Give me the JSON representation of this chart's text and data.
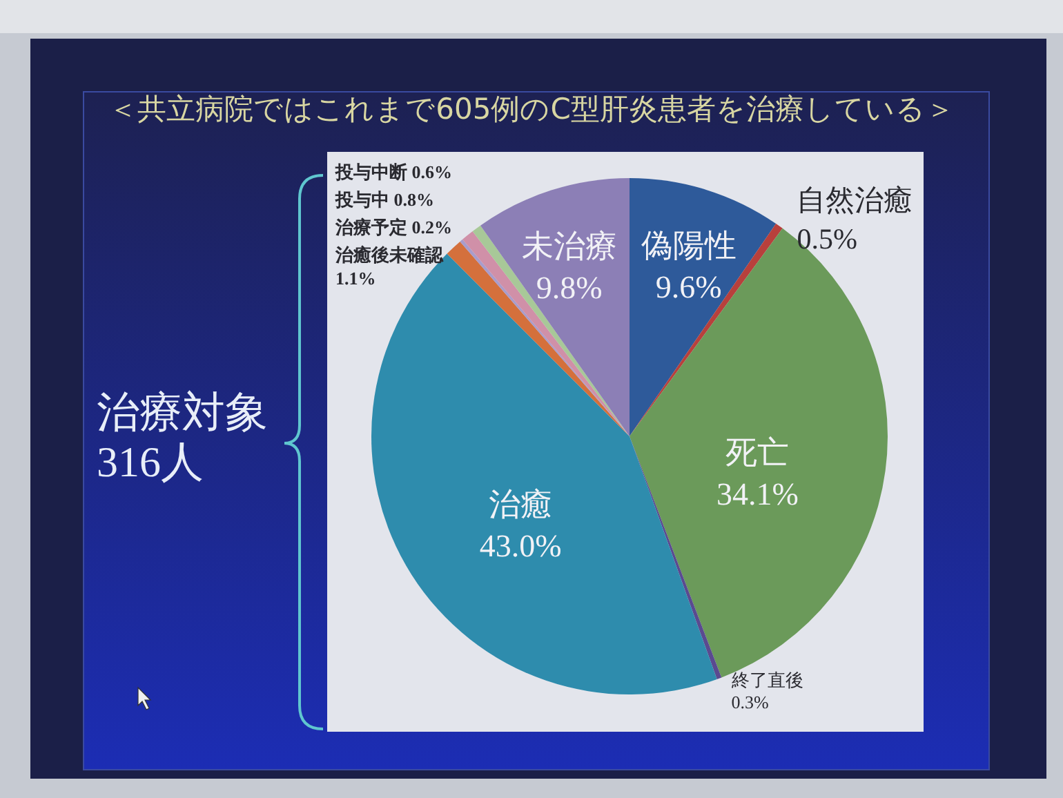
{
  "chart_data": {
    "type": "pie",
    "title": "＜共立病院ではこれまで605例のC型肝炎患者を治療している＞",
    "categories": [
      "偽陽性",
      "自然治癒",
      "死亡",
      "終了直後",
      "治癒",
      "治癒後未確認",
      "治療予定",
      "投与中",
      "投与中断",
      "未治療"
    ],
    "values": [
      9.6,
      0.5,
      34.1,
      0.3,
      43.0,
      1.1,
      0.2,
      0.8,
      0.6,
      9.8
    ],
    "colors": [
      "#2e5a9a",
      "#b8403c",
      "#6b9a5a",
      "#5a4a90",
      "#2e8cad",
      "#d4703c",
      "#a89ccc",
      "#d090a8",
      "#a8c898",
      "#8c7fb6"
    ],
    "value_labels": [
      "9.6%",
      "0.5%",
      "34.1%",
      "0.3%",
      "43.0%",
      "1.1%",
      "0.2%",
      "0.8%",
      "0.6%",
      "9.8%"
    ],
    "annotations": [
      "治療対象 316人"
    ]
  }
}
